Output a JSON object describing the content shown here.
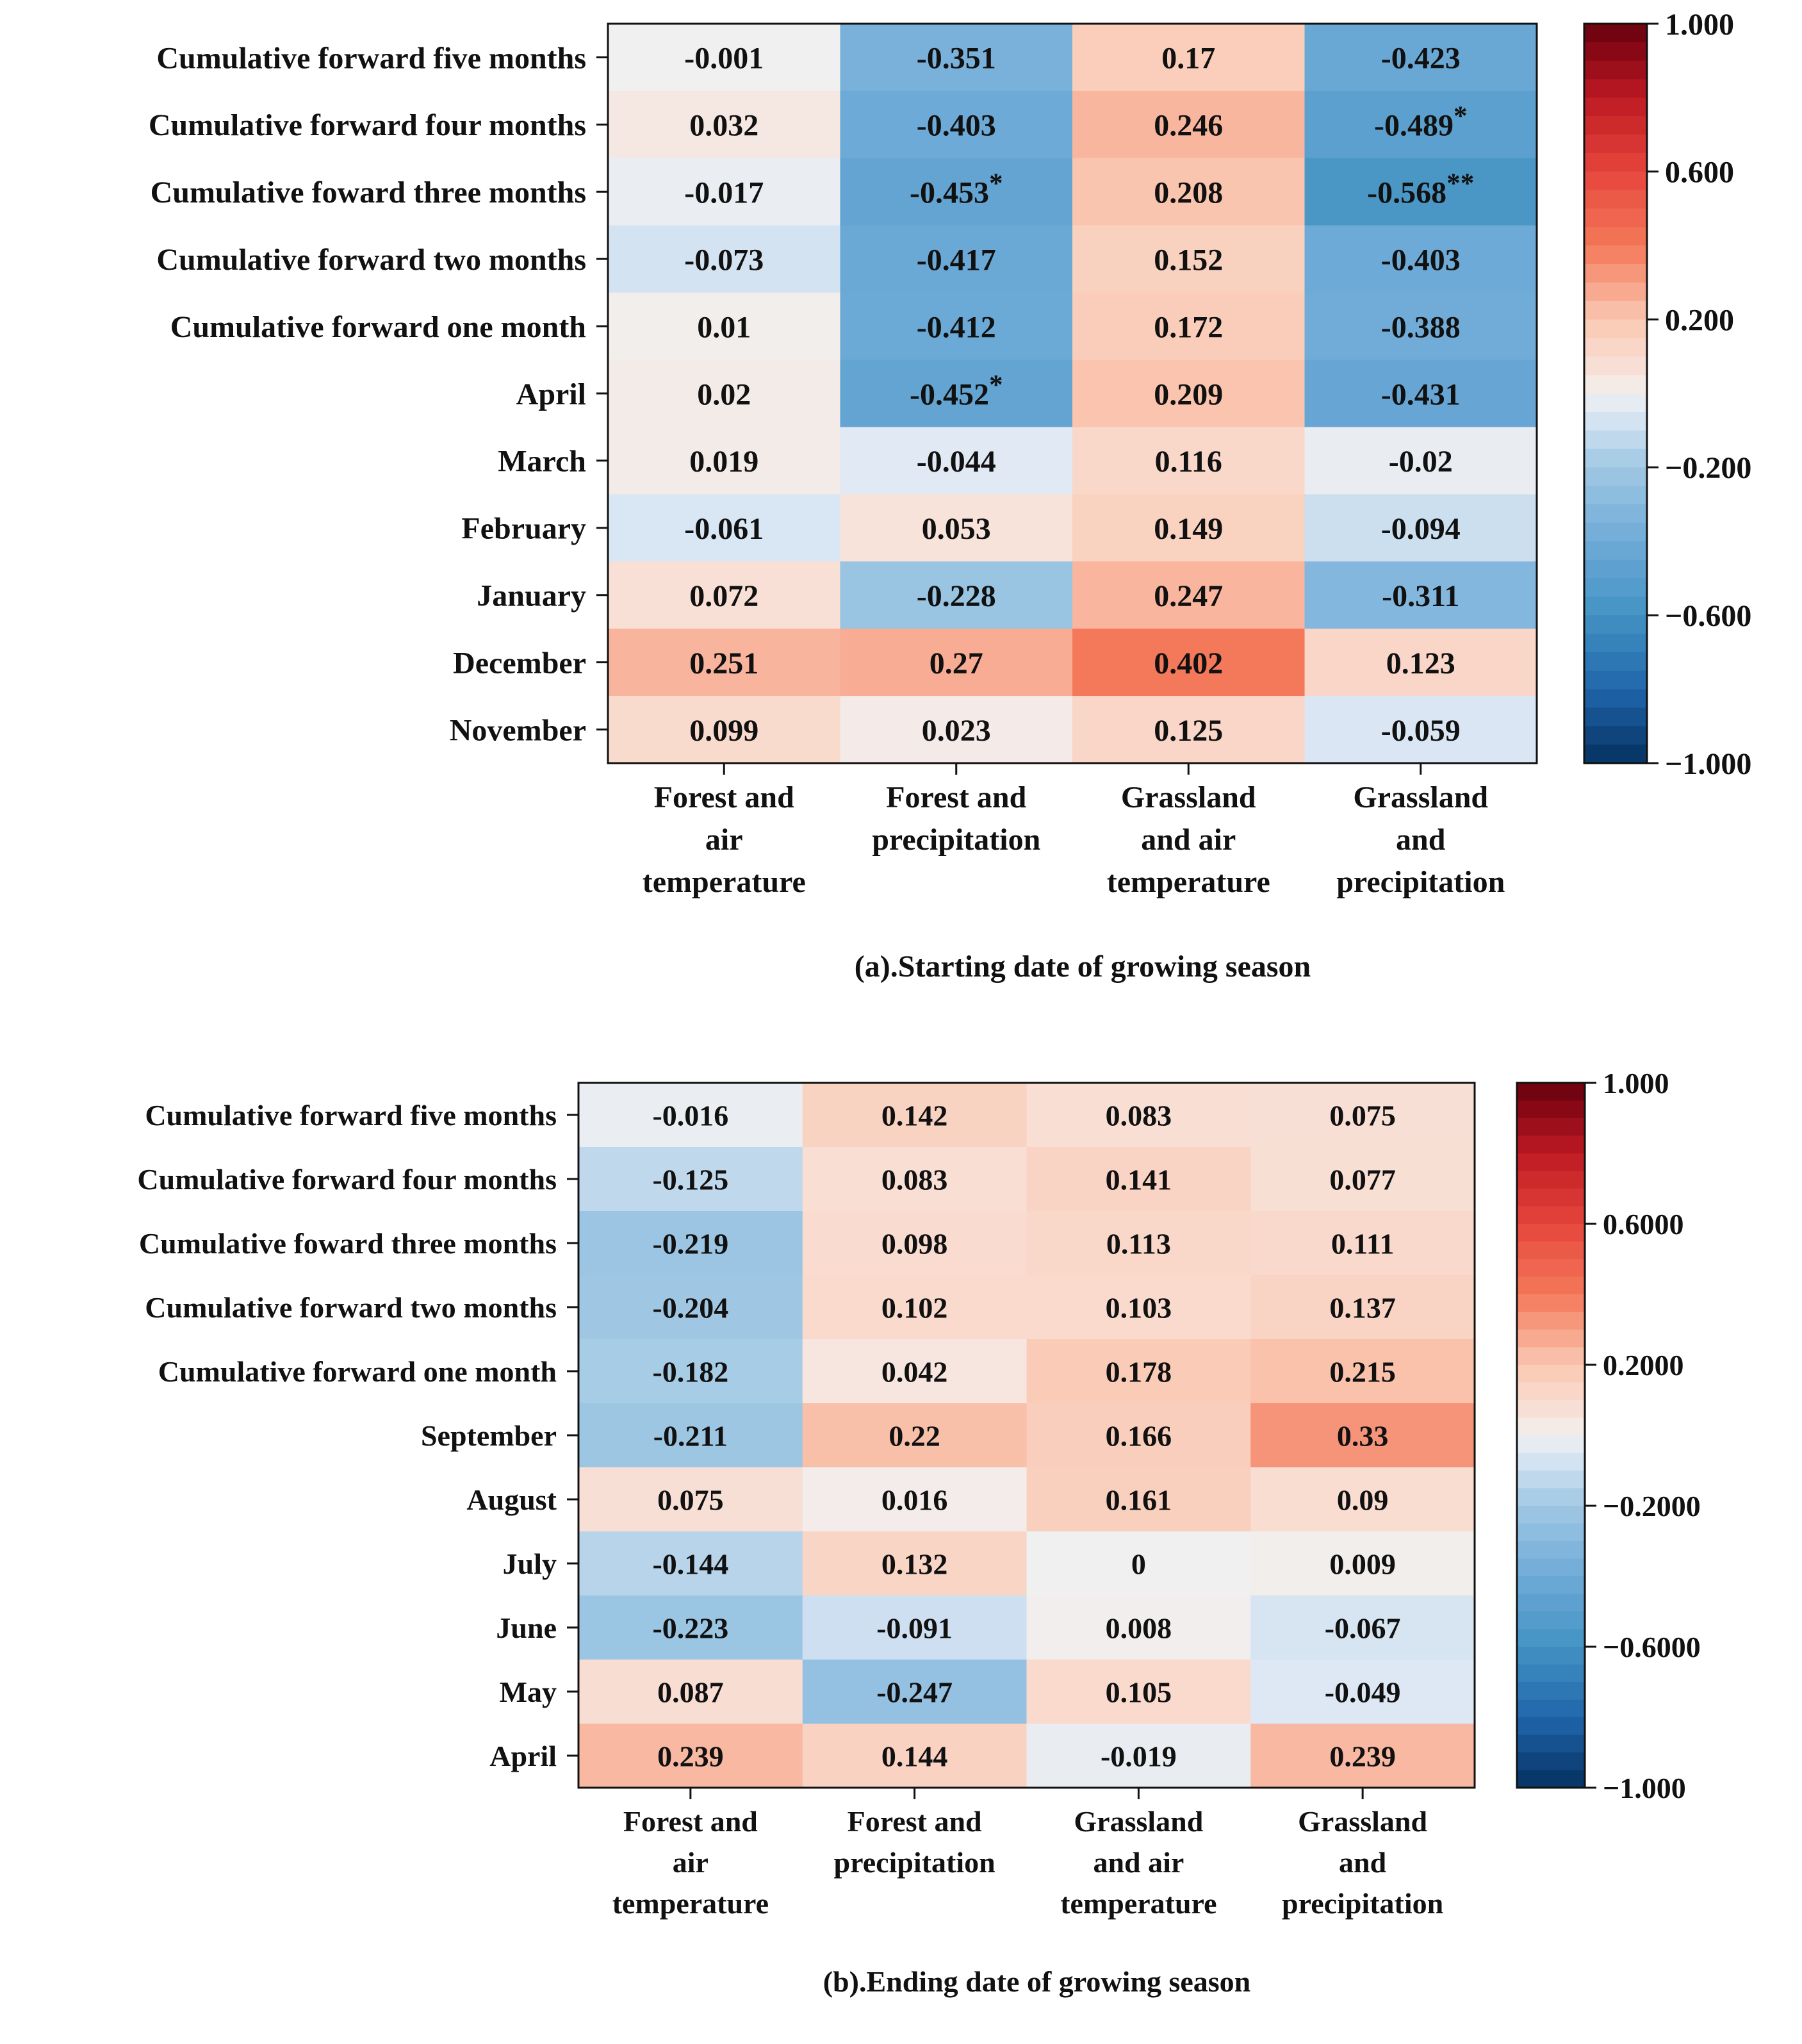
{
  "chart_data": [
    {
      "type": "heatmap",
      "caption": "(a).Starting date of growing season",
      "rows": [
        "Cumulative forward five months",
        "Cumulative forward four months",
        "Cumulative foward three months",
        "Cumulative forward two months",
        "Cumulative forward one month",
        "April",
        "March",
        "February",
        "January",
        "December",
        "November"
      ],
      "columns": [
        "Forest and\nair\ntemperature",
        "Forest and\nprecipitation",
        "Grassland\nand air\ntemperature",
        "Grassland\nand\nprecipitation"
      ],
      "values": [
        [
          "-0.001",
          "-0.351",
          "0.17",
          "-0.423"
        ],
        [
          "0.032",
          "-0.403",
          "0.246",
          "-0.489"
        ],
        [
          "-0.017",
          "-0.453",
          "0.208",
          "-0.568"
        ],
        [
          "-0.073",
          "-0.417",
          "0.152",
          "-0.403"
        ],
        [
          "0.01",
          "-0.412",
          "0.172",
          "-0.388"
        ],
        [
          "0.02",
          "-0.452",
          "0.209",
          "-0.431"
        ],
        [
          "0.019",
          "-0.044",
          "0.116",
          "-0.02"
        ],
        [
          "-0.061",
          "0.053",
          "0.149",
          "-0.094"
        ],
        [
          "0.072",
          "-0.228",
          "0.247",
          "-0.311"
        ],
        [
          "0.251",
          "0.27",
          "0.402",
          "0.123"
        ],
        [
          "0.099",
          "0.023",
          "0.125",
          "-0.059"
        ]
      ],
      "significance": [
        [
          "",
          "",
          "",
          ""
        ],
        [
          "",
          "",
          "",
          "*"
        ],
        [
          "",
          "*",
          "",
          "**"
        ],
        [
          "",
          "",
          "",
          ""
        ],
        [
          "",
          "",
          "",
          ""
        ],
        [
          "",
          "*",
          "",
          ""
        ],
        [
          "",
          "",
          "",
          ""
        ],
        [
          "",
          "",
          "",
          ""
        ],
        [
          "",
          "",
          "",
          ""
        ],
        [
          "",
          "",
          "",
          ""
        ],
        [
          "",
          "",
          "",
          ""
        ]
      ],
      "colorbar": {
        "range": [
          -1,
          1
        ],
        "ticks": [
          {
            "value": 1,
            "label": "1.000"
          },
          {
            "value": 0.6,
            "label": "0.600"
          },
          {
            "value": 0.2,
            "label": "0.200"
          },
          {
            "value": -0.2,
            "label": "−0.200"
          },
          {
            "value": -0.6,
            "label": "−0.600"
          },
          {
            "value": -1,
            "label": "−1.000"
          }
        ]
      }
    },
    {
      "type": "heatmap",
      "caption": "(b).Ending date of growing season",
      "rows": [
        "Cumulative forward five months",
        "Cumulative forward four months",
        "Cumulative foward three months",
        "Cumulative forward two months",
        "Cumulative forward one month",
        "September",
        "August",
        "July",
        "June",
        "May",
        "April"
      ],
      "columns": [
        "Forest and\nair\ntemperature",
        "Forest and\nprecipitation",
        "Grassland\nand air\ntemperature",
        "Grassland\nand\nprecipitation"
      ],
      "values": [
        [
          "-0.016",
          "0.142",
          "0.083",
          "0.075"
        ],
        [
          "-0.125",
          "0.083",
          "0.141",
          "0.077"
        ],
        [
          "-0.219",
          "0.098",
          "0.113",
          "0.111"
        ],
        [
          "-0.204",
          "0.102",
          "0.103",
          "0.137"
        ],
        [
          "-0.182",
          "0.042",
          "0.178",
          "0.215"
        ],
        [
          "-0.211",
          "0.22",
          "0.166",
          "0.33"
        ],
        [
          "0.075",
          "0.016",
          "0.161",
          "0.09"
        ],
        [
          "-0.144",
          "0.132",
          "0",
          "0.009"
        ],
        [
          "-0.223",
          "-0.091",
          "0.008",
          "-0.067"
        ],
        [
          "0.087",
          "-0.247",
          "0.105",
          "-0.049"
        ],
        [
          "0.239",
          "0.144",
          "-0.019",
          "0.239"
        ]
      ],
      "significance": [
        [
          "",
          "",
          "",
          ""
        ],
        [
          "",
          "",
          "",
          ""
        ],
        [
          "",
          "",
          "",
          ""
        ],
        [
          "",
          "",
          "",
          ""
        ],
        [
          "",
          "",
          "",
          ""
        ],
        [
          "",
          "",
          "",
          ""
        ],
        [
          "",
          "",
          "",
          ""
        ],
        [
          "",
          "",
          "",
          ""
        ],
        [
          "",
          "",
          "",
          ""
        ],
        [
          "",
          "",
          "",
          ""
        ],
        [
          "",
          "",
          "",
          ""
        ]
      ],
      "colorbar": {
        "range": [
          -1,
          1
        ],
        "ticks": [
          {
            "value": 1,
            "label": "1.000"
          },
          {
            "value": 0.6,
            "label": "0.6000"
          },
          {
            "value": 0.2,
            "label": "0.2000"
          },
          {
            "value": -0.2,
            "label": "−0.2000"
          },
          {
            "value": -0.6,
            "label": "−0.6000"
          },
          {
            "value": -1,
            "label": "−1.000"
          }
        ]
      }
    }
  ]
}
